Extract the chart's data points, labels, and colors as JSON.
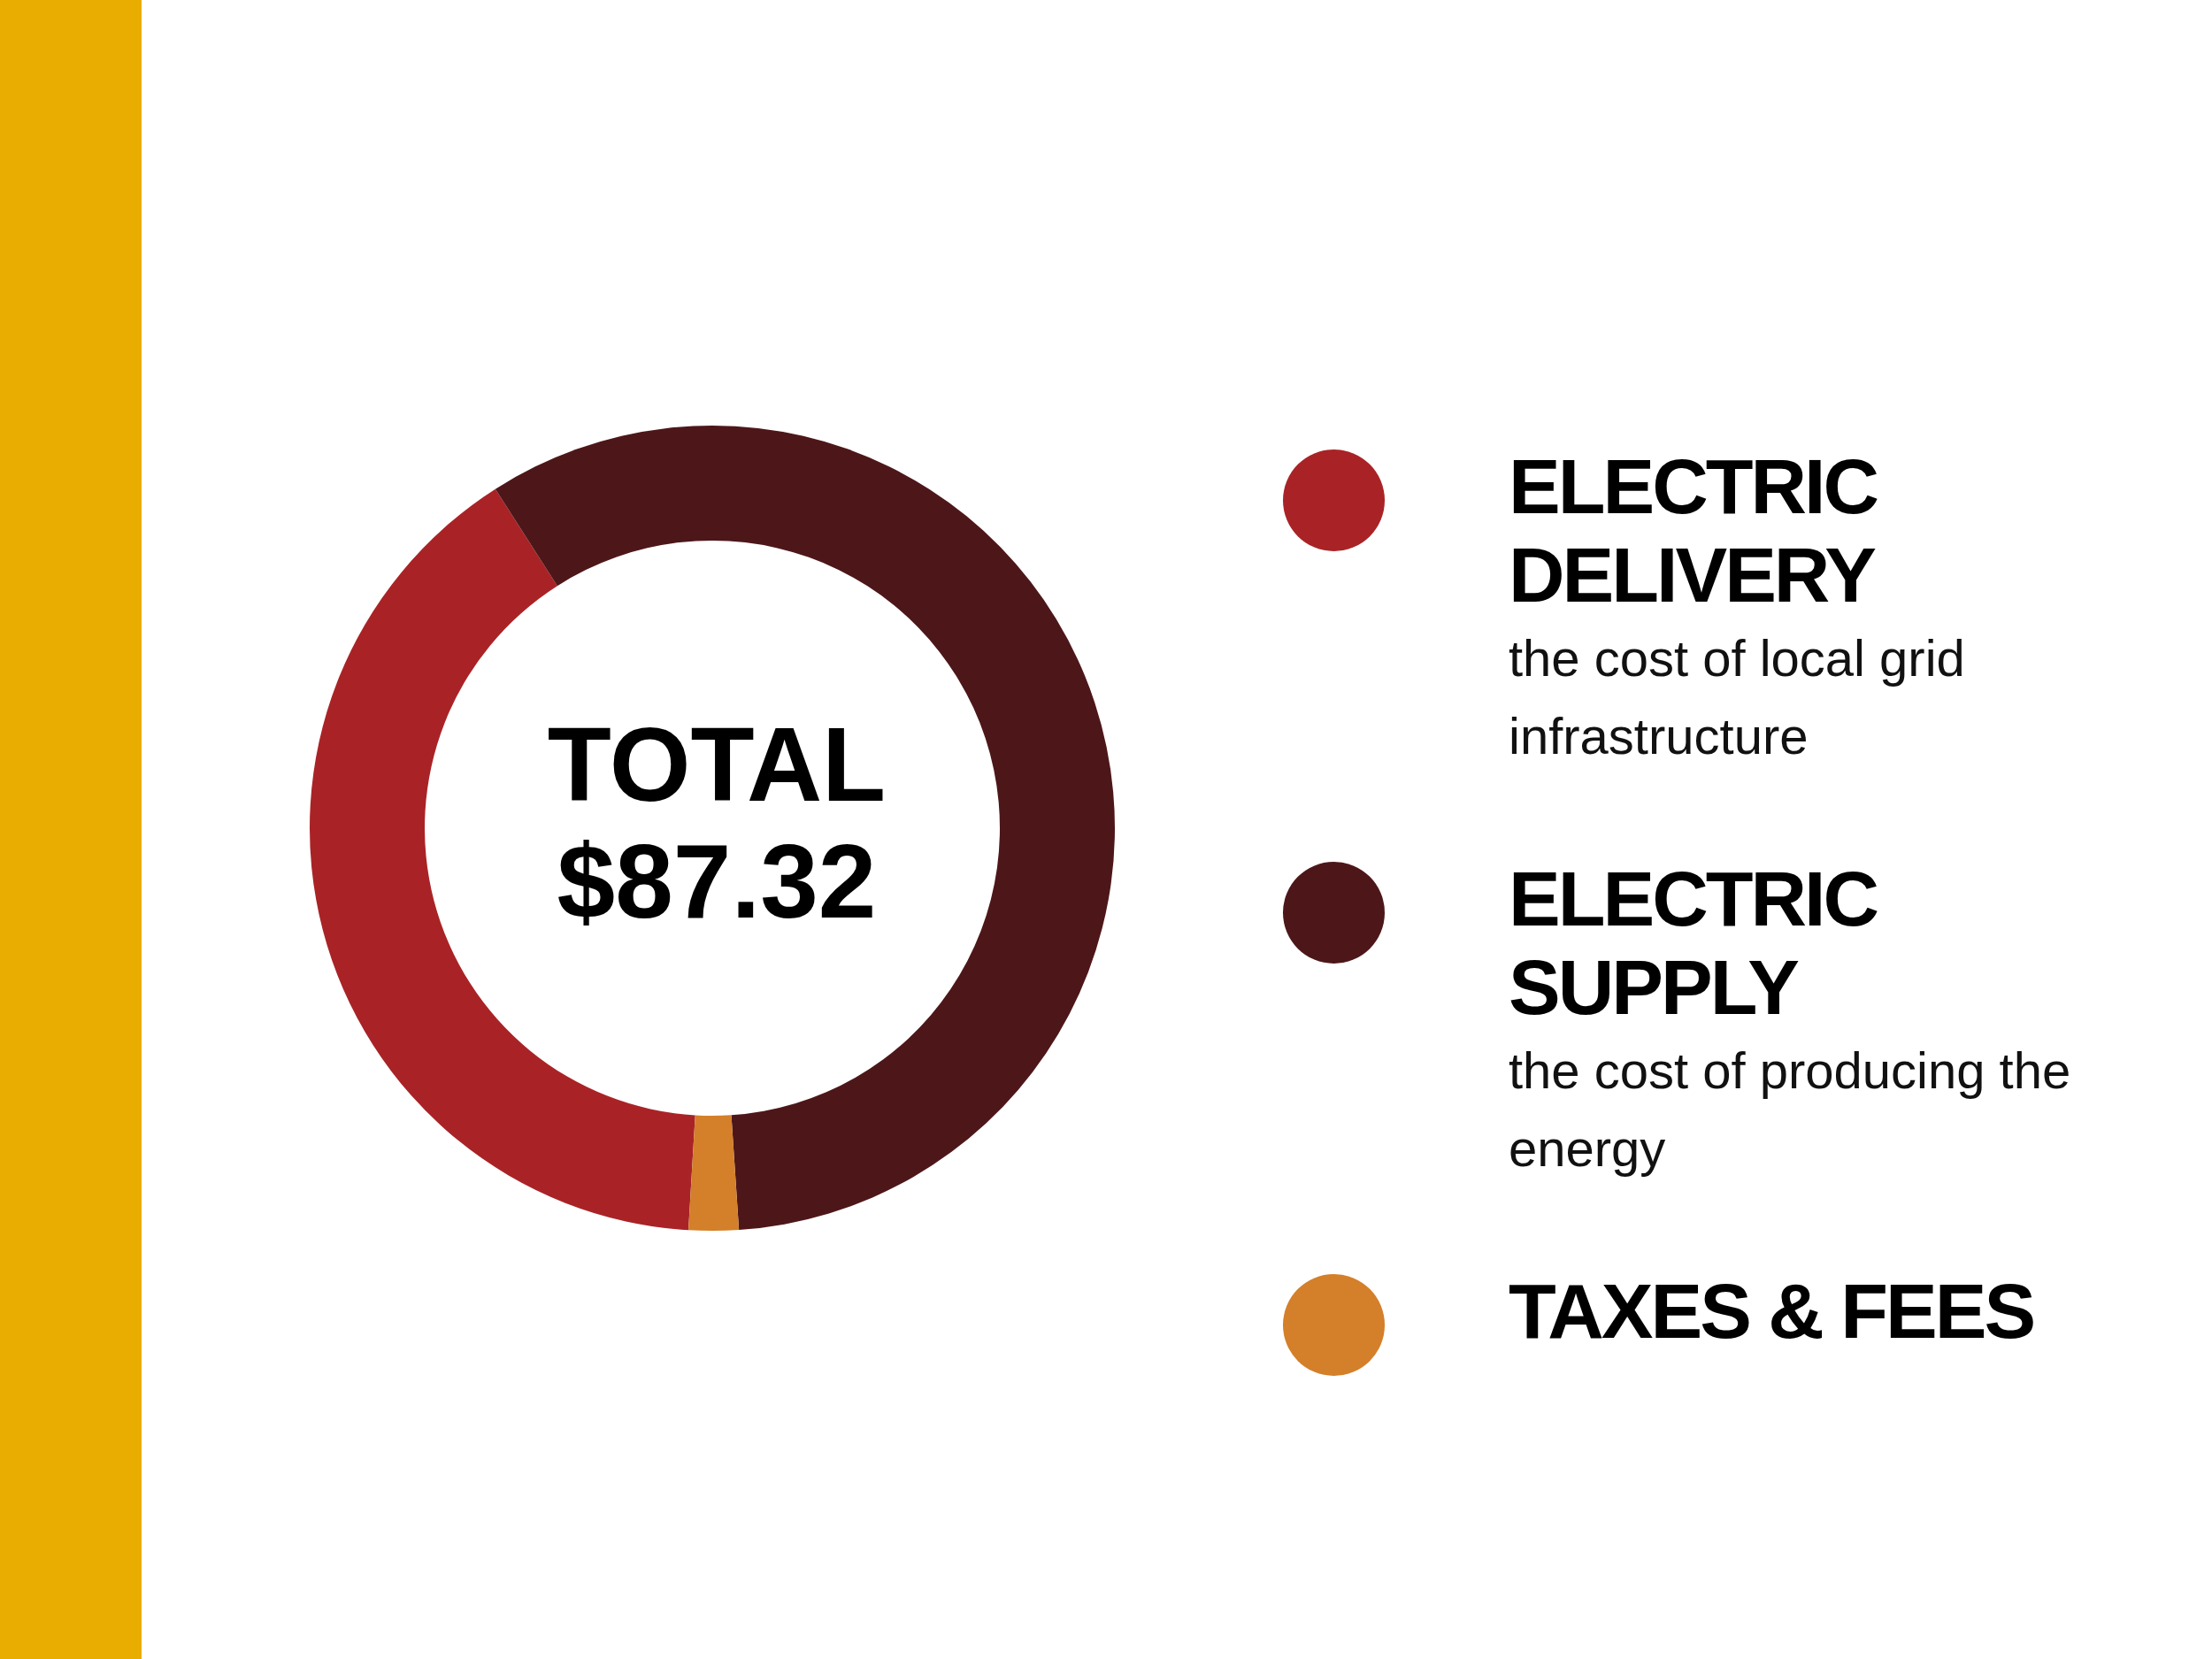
{
  "chart_data": {
    "type": "donut",
    "title": "TOTAL",
    "subtitle": "$87.32",
    "categories": [
      "ELECTRIC DELIVERY",
      "ELECTRIC SUPPLY",
      "TAXES & FEES"
    ],
    "values": [
      40,
      58,
      2
    ],
    "colors": [
      "#a92326",
      "#4d1719",
      "#d47f29"
    ],
    "annotations": [
      "the cost of local grid infrastructure",
      "the cost of producing the energy"
    ],
    "legend": "right"
  }
}
